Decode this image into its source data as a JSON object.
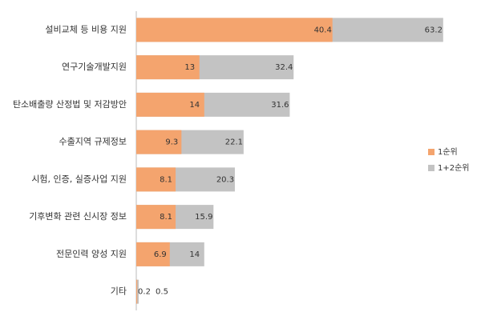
{
  "chart_data": {
    "type": "bar",
    "orientation": "horizontal",
    "categories": [
      "설비교체 등 비용 지원",
      "연구기술개발지원",
      "탄소배출량 산정법 및 저감방안",
      "수출지역 규제정보",
      "시험, 인증, 실증사업 지원",
      "기후변화 관련 신시장 정보",
      "전문인력 양성 지원",
      "기타"
    ],
    "series": [
      {
        "name": "1순위",
        "color": "#f4a46e",
        "values": [
          40.4,
          13,
          14,
          9.3,
          8.1,
          8.1,
          6.9,
          0.2
        ]
      },
      {
        "name": "1+2순위",
        "color": "#c3c3c3",
        "values": [
          63.2,
          32.4,
          31.6,
          22.1,
          20.3,
          15.9,
          14,
          0.5
        ]
      }
    ],
    "xlim": [
      0,
      70
    ],
    "legend": "right"
  }
}
